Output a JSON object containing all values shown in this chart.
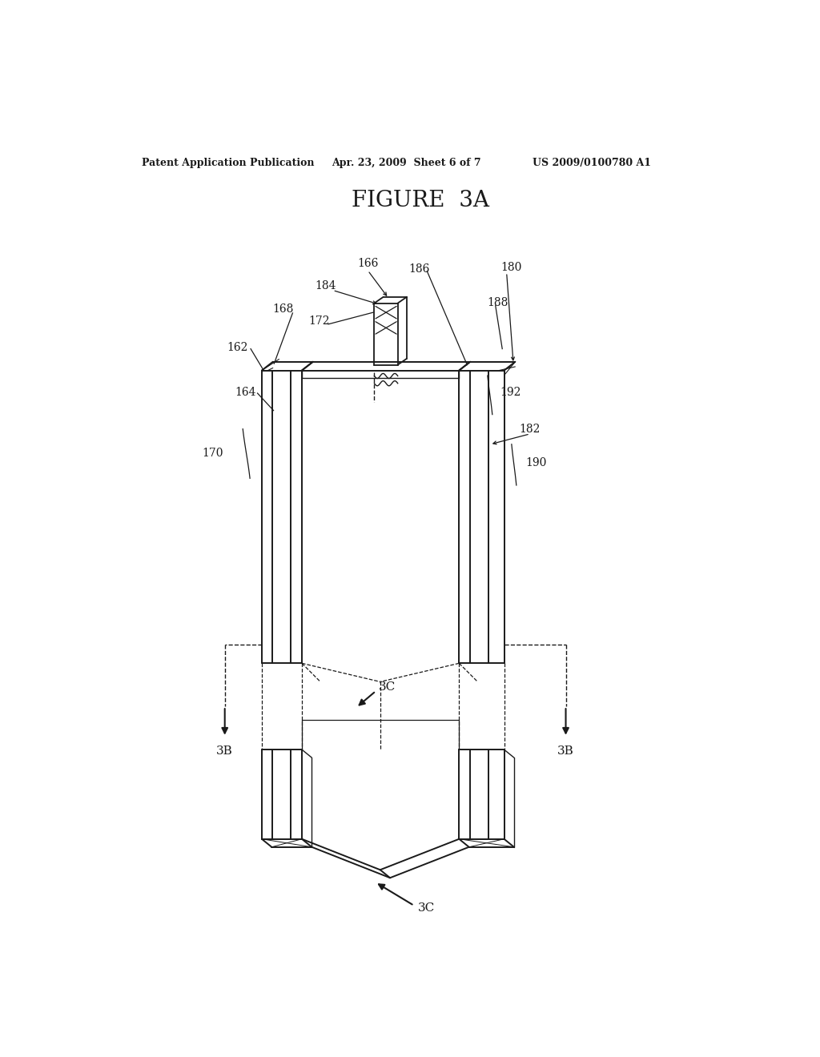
{
  "bg_color": "#ffffff",
  "line_color": "#1a1a1a",
  "header_left": "Patent Application Publication",
  "header_mid": "Apr. 23, 2009  Sheet 6 of 7",
  "header_right": "US 2009/0100780 A1",
  "figure_title": "FIGURE  3A"
}
